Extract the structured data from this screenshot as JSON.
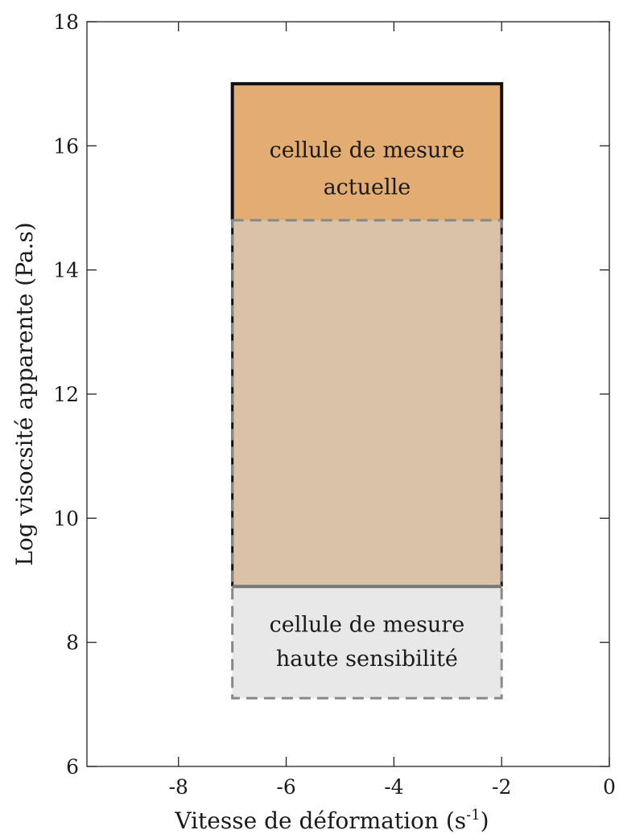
{
  "chart_data": {
    "type": "area",
    "title": "",
    "xlabel_main": "Vitesse de déformation (s",
    "xlabel_sup": "-1",
    "xlabel_end": ")",
    "ylabel": "Log visocsité apparente (Pa.s)",
    "xlim": [
      -9.7,
      0
    ],
    "ylim": [
      6,
      18
    ],
    "xticks": [
      -8,
      -6,
      -4,
      -2,
      0
    ],
    "xtick_labels": [
      "-8",
      "-6",
      "-4",
      "-2",
      "0"
    ],
    "yticks": [
      6,
      8,
      10,
      12,
      14,
      16,
      18
    ],
    "ytick_labels": [
      "6",
      "8",
      "10",
      "12",
      "14",
      "16",
      "18"
    ],
    "grid": false,
    "regions": [
      {
        "name": "cellule de mesure haute sensibilité",
        "label_lines": [
          "cellule de mesure",
          "haute sensibilité"
        ],
        "x_range": [
          -7,
          -2
        ],
        "y_range": [
          7.1,
          14.8
        ],
        "fill": "#e8e8e8",
        "stroke": "#888888",
        "dashed": true
      },
      {
        "name": "cellule de mesure actuelle",
        "label_lines": [
          "cellule de mesure",
          "actuelle"
        ],
        "x_range": [
          -7,
          -2
        ],
        "y_range": [
          8.9,
          17
        ],
        "fill": "#e2ac72",
        "stroke": "#111111",
        "dashed": false
      }
    ],
    "overlap": {
      "x_range": [
        -7,
        -2
      ],
      "y_range": [
        8.9,
        14.8
      ],
      "fill": "#d9c2a8"
    }
  }
}
